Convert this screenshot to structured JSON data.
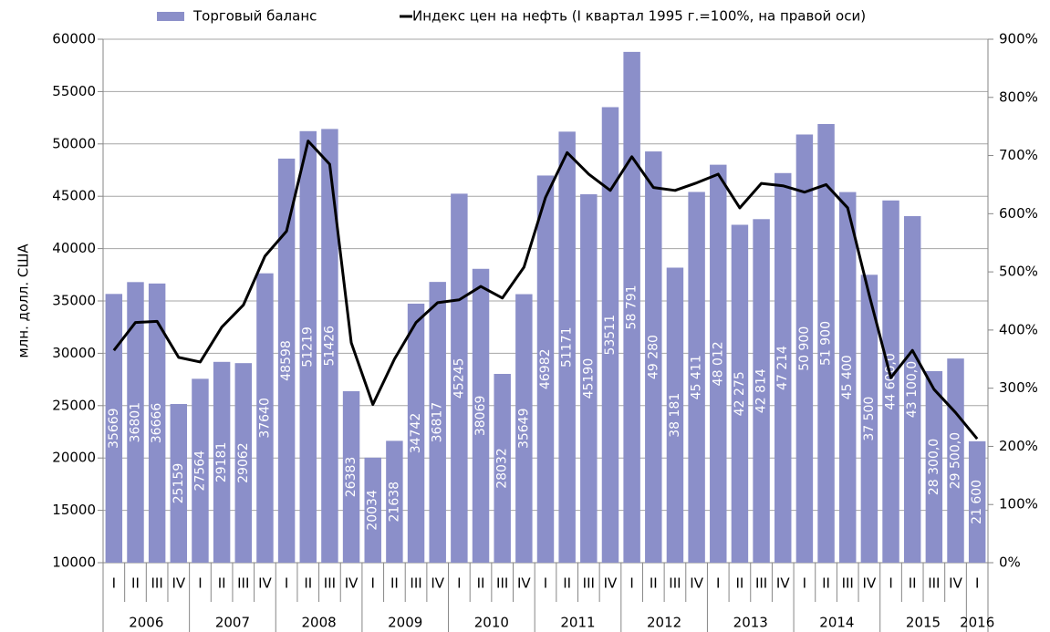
{
  "chart_data": {
    "type": "bar",
    "y_label": "млн. долл. США",
    "categories": [
      "I",
      "II",
      "III",
      "IV",
      "I",
      "II",
      "III",
      "IV",
      "I",
      "II",
      "III",
      "IV",
      "I",
      "II",
      "III",
      "IV",
      "I",
      "II",
      "III",
      "IV",
      "I",
      "II",
      "III",
      "IV",
      "I",
      "II",
      "III",
      "IV",
      "I",
      "II",
      "III",
      "IV",
      "I",
      "II",
      "III",
      "IV",
      "I",
      "II",
      "III",
      "IV",
      "I"
    ],
    "years": [
      "2006",
      "2007",
      "2008",
      "2009",
      "2010",
      "2011",
      "2012",
      "2013",
      "2014",
      "2015",
      "2016"
    ],
    "series": [
      {
        "name": "Торговый баланс",
        "type": "bar",
        "color": "#8b8fc9",
        "values": [
          35669,
          36801,
          36666,
          25159,
          27564,
          29181,
          29062,
          37640,
          48598,
          51219,
          51426,
          26383,
          20034,
          21638,
          34742,
          36817,
          45245,
          38069,
          28032,
          35649,
          46982,
          51171,
          45190,
          53511,
          58791,
          49280,
          38181,
          45411,
          48012,
          42275,
          42814,
          47214,
          50900,
          51900,
          45400,
          37500,
          44600,
          43100,
          28300,
          29500,
          21600
        ],
        "value_labels": [
          "35669",
          "36801",
          "36666",
          "25159",
          "27564",
          "29181",
          "29062",
          "37640",
          "48598",
          "51219",
          "51426",
          "26383",
          "20034",
          "21638",
          "34742",
          "36817",
          "45245",
          "38069",
          "28032",
          "35649",
          "46982",
          "51171",
          "45190",
          "53511",
          "58 791",
          "49 280",
          "38 181",
          "45 411",
          "48 012",
          "42 275",
          "42 814",
          "47 214",
          "50 900",
          "51 900",
          "45 400",
          "37 500",
          "44 600,0",
          "43 100,0",
          "28 300,0",
          "29 500,0",
          "21 600"
        ]
      },
      {
        "name": "Индекс цен на нефть (I квартал 1995 г.=100%, на правой оси)",
        "type": "line",
        "axis": "y2",
        "color": "#000000",
        "values": [
          365,
          413,
          415,
          353,
          345,
          405,
          443,
          527,
          570,
          725,
          685,
          378,
          272,
          350,
          413,
          447,
          452,
          475,
          455,
          508,
          628,
          705,
          668,
          640,
          698,
          645,
          640,
          653,
          668,
          610,
          652,
          648,
          637,
          650,
          610,
          460,
          318,
          365,
          298,
          258,
          213
        ]
      }
    ],
    "ylim": [
      10000,
      60000
    ],
    "yticks": [
      10000,
      15000,
      20000,
      25000,
      30000,
      35000,
      40000,
      45000,
      50000,
      55000,
      60000
    ],
    "y2lim": [
      0,
      900
    ],
    "y2ticks": [
      {
        "value": 0,
        "label": "0%"
      },
      {
        "value": 100,
        "label": "100%"
      },
      {
        "value": 200,
        "label": "200%"
      },
      {
        "value": 300,
        "label": "300%"
      },
      {
        "value": 400,
        "label": "400%"
      },
      {
        "value": 500,
        "label": "500%"
      },
      {
        "value": 600,
        "label": "600%"
      },
      {
        "value": 700,
        "label": "700%"
      },
      {
        "value": 800,
        "label": "800%"
      },
      {
        "value": 900,
        "label": "900%"
      }
    ],
    "grid": true
  }
}
